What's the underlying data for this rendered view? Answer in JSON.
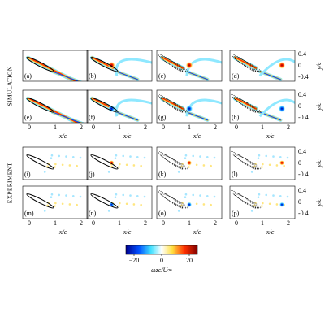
{
  "sections": [
    {
      "label": "SIMULATION",
      "panels": [
        "(a)",
        "(b)",
        "(c)",
        "(d)",
        "(e)",
        "(f)",
        "(g)",
        "(h)"
      ]
    },
    {
      "label": "EXPERIMENT",
      "panels": [
        "(i)",
        "(j)",
        "(k)",
        "(l)",
        "(m)",
        "(n)",
        "(o)",
        "(p)"
      ]
    }
  ],
  "x_axis": {
    "ticks": [
      "0",
      "1",
      "2"
    ],
    "label": "x/c"
  },
  "y_axis": {
    "ticks": [
      "0.4",
      "0",
      "-0.4"
    ],
    "label": "y/c"
  },
  "colorbar": {
    "ticks": [
      "−20",
      "0",
      "20"
    ],
    "label": "ωzc/U∞"
  }
}
